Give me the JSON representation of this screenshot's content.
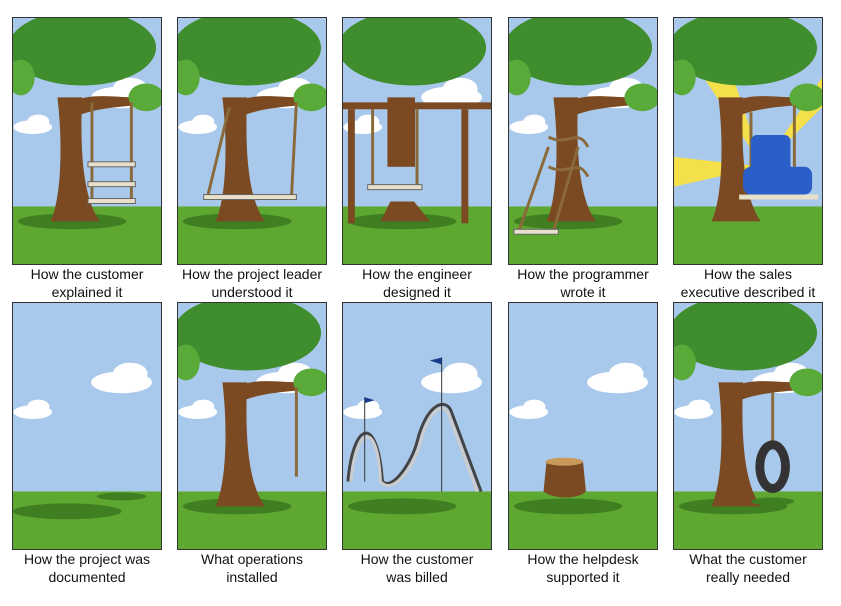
{
  "panels": [
    {
      "variant": "customer",
      "caption_line1": "How the customer",
      "caption_line2": "explained it"
    },
    {
      "variant": "leader",
      "caption_line1": "How the project leader",
      "caption_line2": "understood it"
    },
    {
      "variant": "engineer",
      "caption_line1": "How the engineer",
      "caption_line2": "designed it"
    },
    {
      "variant": "programmer",
      "caption_line1": "How the programmer",
      "caption_line2": "wrote it"
    },
    {
      "variant": "sales",
      "caption_line1": "How the sales",
      "caption_line2": "executive described it"
    },
    {
      "variant": "documented",
      "caption_line1": "How the project was",
      "caption_line2": "documented"
    },
    {
      "variant": "operations",
      "caption_line1": "What operations",
      "caption_line2": "installed"
    },
    {
      "variant": "billed",
      "caption_line1": "How the customer",
      "caption_line2": "was billed"
    },
    {
      "variant": "helpdesk",
      "caption_line1": "How the helpdesk",
      "caption_line2": "supported it"
    },
    {
      "variant": "needed",
      "caption_line1": "What the customer",
      "caption_line2": "really needed"
    }
  ],
  "colors": {
    "sky": "#a9c9ec",
    "grass": "#5ea832",
    "grass_dark": "#3f7f22",
    "trunk": "#7b4a22",
    "foliage": "#3f8d2c",
    "foliage_light": "#5aaa3a",
    "rope": "#8a6a3a",
    "seat": "#e8e0c8",
    "chair": "#2a5fc8",
    "sun": "#f3e04a",
    "cloud": "#ffffff"
  }
}
